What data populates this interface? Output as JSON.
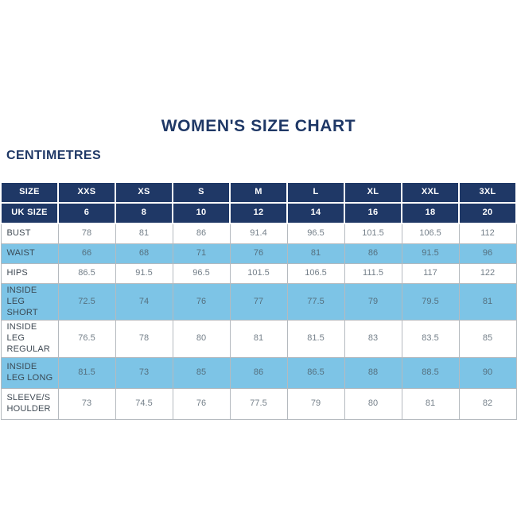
{
  "page": {
    "title": "WOMEN'S SIZE CHART",
    "unit_label": "CENTIMETRES"
  },
  "colors": {
    "navy_header": "#1f3866",
    "light_blue_row": "#7dc4e6",
    "white_row": "#ffffff",
    "value_text": "#75808a",
    "grid_border": "#b5babf"
  },
  "chart_data": {
    "type": "table",
    "title": "WOMEN'S SIZE CHART",
    "unit": "CENTIMETRES",
    "columns": [
      "SIZE",
      "XXS",
      "XS",
      "S",
      "M",
      "L",
      "XL",
      "XXL",
      "3XL"
    ],
    "rows": [
      {
        "label": "UK SIZE",
        "values": [
          "6",
          "8",
          "10",
          "12",
          "14",
          "16",
          "18",
          "20"
        ]
      },
      {
        "label": "BUST",
        "values": [
          "78",
          "81",
          "86",
          "91.4",
          "96.5",
          "101.5",
          "106.5",
          "112"
        ]
      },
      {
        "label": "WAIST",
        "values": [
          "66",
          "68",
          "71",
          "76",
          "81",
          "86",
          "91.5",
          "96"
        ]
      },
      {
        "label": "HIPS",
        "values": [
          "86.5",
          "91.5",
          "96.5",
          "101.5",
          "106.5",
          "111.5",
          "117",
          "122"
        ]
      },
      {
        "label": "INSIDE LEG SHORT",
        "values": [
          "72.5",
          "74",
          "76",
          "77",
          "77.5",
          "79",
          "79.5",
          "81"
        ]
      },
      {
        "label": "INSIDE LEG REGULAR",
        "values": [
          "76.5",
          "78",
          "80",
          "81",
          "81.5",
          "83",
          "83.5",
          "85"
        ]
      },
      {
        "label": "INSIDE LEG LONG",
        "values": [
          "81.5",
          "73",
          "85",
          "86",
          "86.5",
          "88",
          "88.5",
          "90"
        ]
      },
      {
        "label": "SLEEVE/SHOULDER",
        "values": [
          "73",
          "74.5",
          "76",
          "77.5",
          "79",
          "80",
          "81",
          "82"
        ]
      }
    ]
  }
}
